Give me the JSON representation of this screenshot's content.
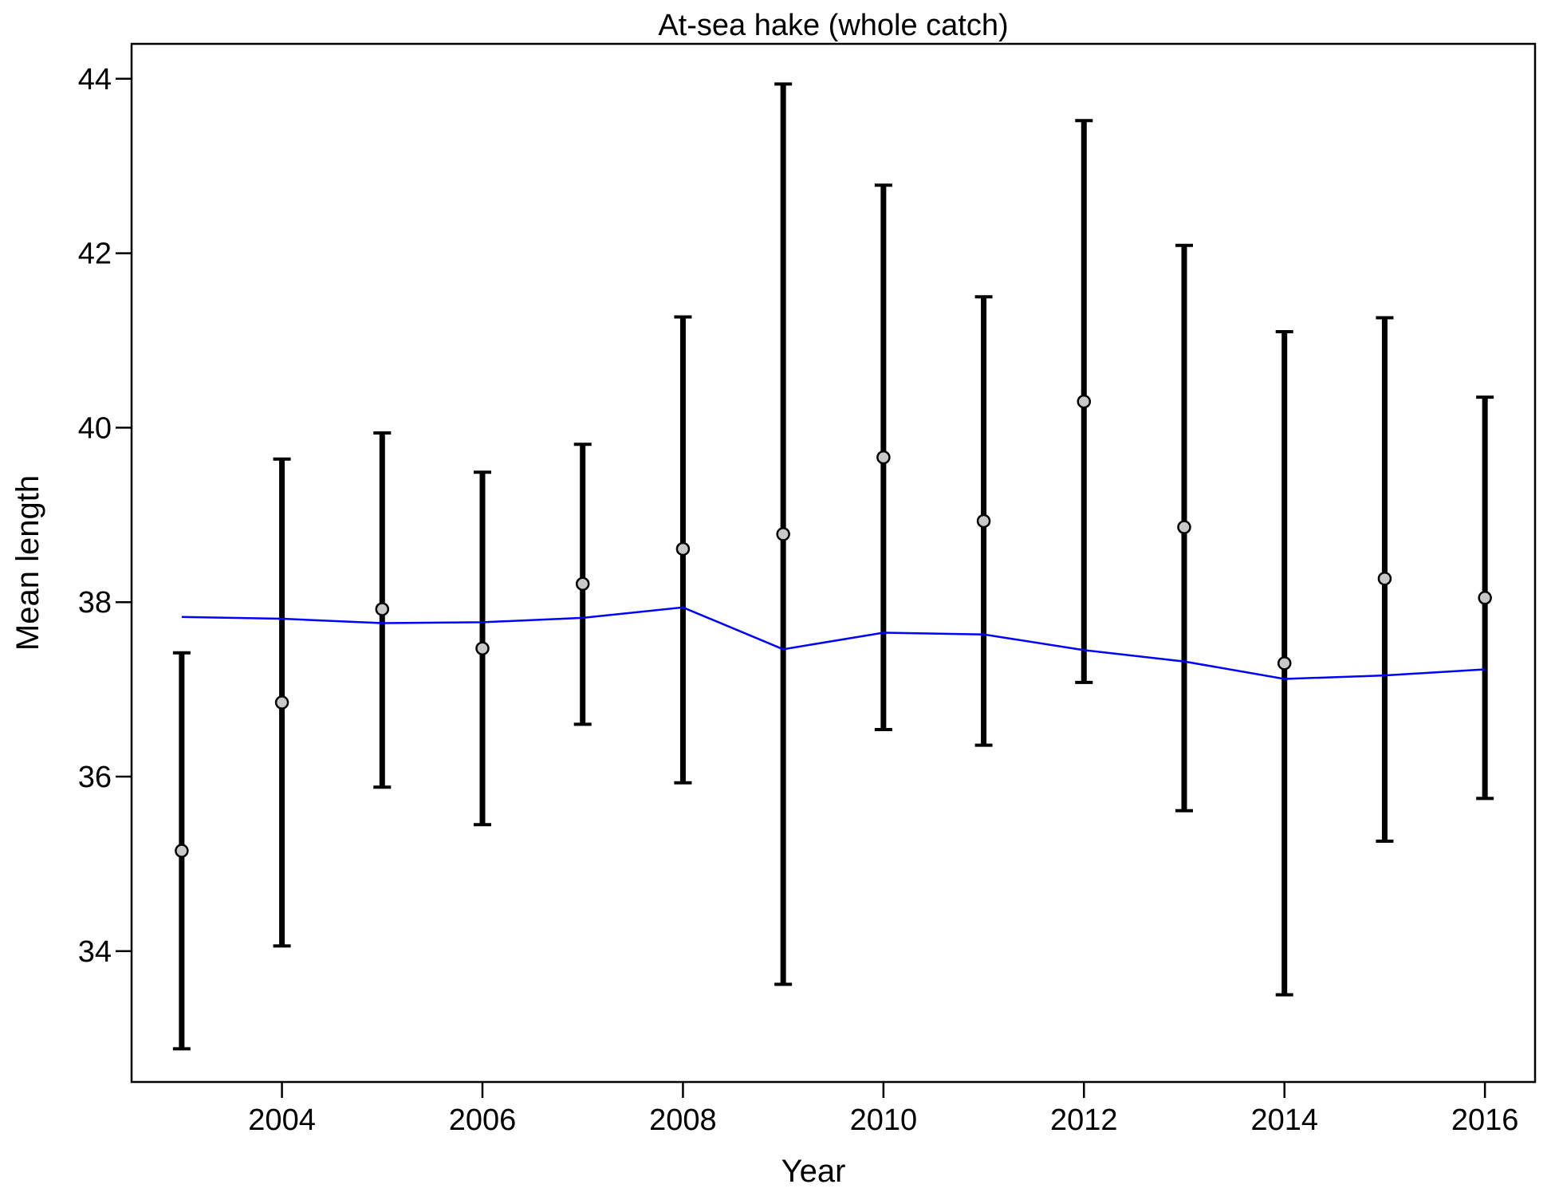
{
  "chart_data": {
    "type": "scatter",
    "title": "At-sea hake (whole catch)",
    "xlabel": "Year",
    "ylabel": "Mean length",
    "xlim": [
      2002.5,
      2016.5
    ],
    "ylim": [
      32.5,
      44.4
    ],
    "xticks": [
      2004,
      2006,
      2008,
      2010,
      2012,
      2014,
      2016
    ],
    "yticks": [
      34,
      36,
      38,
      40,
      42,
      44
    ],
    "grid": false,
    "series": [
      {
        "kind": "observed-with-intervals",
        "color": "#000000",
        "marker_fill": "#c8c8c8",
        "points": [
          {
            "x": 2003,
            "y": 35.15,
            "lo": 32.88,
            "hi": 37.42
          },
          {
            "x": 2004,
            "y": 36.85,
            "lo": 34.06,
            "hi": 39.64
          },
          {
            "x": 2005,
            "y": 37.92,
            "lo": 35.88,
            "hi": 39.94
          },
          {
            "x": 2006,
            "y": 37.47,
            "lo": 35.45,
            "hi": 39.49
          },
          {
            "x": 2007,
            "y": 38.21,
            "lo": 36.6,
            "hi": 39.81
          },
          {
            "x": 2008,
            "y": 38.61,
            "lo": 35.93,
            "hi": 41.27
          },
          {
            "x": 2009,
            "y": 38.78,
            "lo": 33.62,
            "hi": 43.94
          },
          {
            "x": 2010,
            "y": 39.66,
            "lo": 36.54,
            "hi": 42.78
          },
          {
            "x": 2011,
            "y": 38.93,
            "lo": 36.36,
            "hi": 41.5
          },
          {
            "x": 2012,
            "y": 40.3,
            "lo": 37.08,
            "hi": 43.52
          },
          {
            "x": 2013,
            "y": 38.86,
            "lo": 35.61,
            "hi": 42.09
          },
          {
            "x": 2014,
            "y": 37.3,
            "lo": 33.5,
            "hi": 41.1
          },
          {
            "x": 2015,
            "y": 38.27,
            "lo": 35.26,
            "hi": 41.26
          },
          {
            "x": 2016,
            "y": 38.05,
            "lo": 35.75,
            "hi": 40.35
          }
        ]
      },
      {
        "kind": "expected-line",
        "color": "#0000ff",
        "x": [
          2003,
          2004,
          2005,
          2006,
          2007,
          2008,
          2009,
          2010,
          2011,
          2012,
          2013,
          2014,
          2015,
          2016
        ],
        "y": [
          37.83,
          37.81,
          37.76,
          37.77,
          37.82,
          37.94,
          37.46,
          37.65,
          37.63,
          37.45,
          37.32,
          37.12,
          37.16,
          37.23
        ]
      }
    ]
  }
}
